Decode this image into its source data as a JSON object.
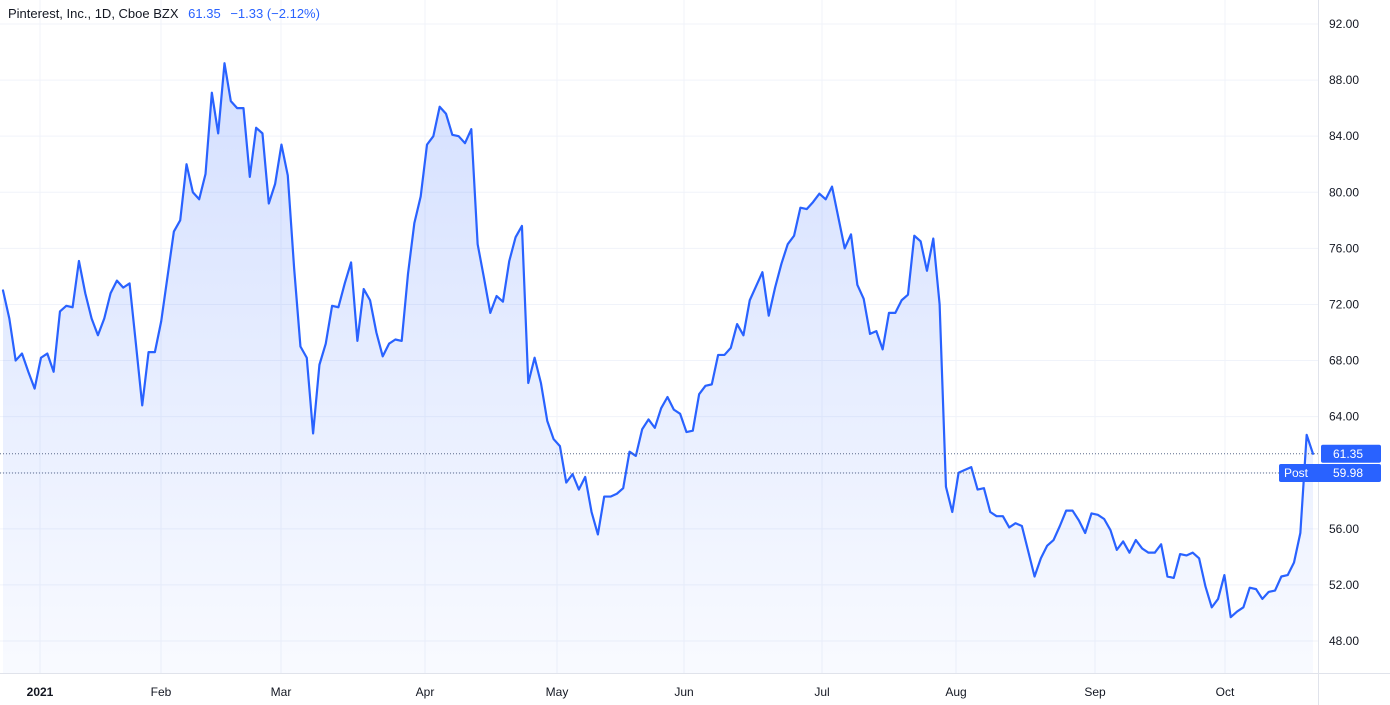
{
  "legend": {
    "name": "Pinterest, Inc., 1D, Cboe BZX",
    "price": "61.35",
    "change": "−1.33 (−2.12%)"
  },
  "price_label": "61.35",
  "post_label": {
    "tag": "Post",
    "value": "59.98"
  },
  "colors": {
    "line": "#2962ff",
    "grid": "#f0f3fa",
    "label_bg": "#2962ff"
  },
  "chart_data": {
    "type": "area",
    "symbol": "PINS",
    "ylim": [
      46,
      93
    ],
    "y_ticks": [
      "48.00",
      "52.00",
      "56.00",
      "60.00",
      "64.00",
      "68.00",
      "72.00",
      "76.00",
      "80.00",
      "84.00",
      "88.00",
      "92.00"
    ],
    "x_ticks": [
      "2021",
      "Feb",
      "Mar",
      "Apr",
      "May",
      "Jun",
      "Jul",
      "Aug",
      "Sep",
      "Oct"
    ],
    "last_price": 61.35,
    "post_market_price": 59.98,
    "close": [
      73.0,
      71.0,
      68.0,
      68.5,
      67.2,
      66.0,
      68.2,
      68.5,
      67.2,
      71.5,
      71.9,
      71.8,
      75.1,
      72.8,
      71.0,
      69.8,
      71.0,
      72.8,
      73.7,
      73.2,
      73.5,
      69.2,
      64.8,
      68.6,
      68.6,
      70.8,
      74.0,
      77.2,
      78.0,
      82.0,
      80.0,
      79.5,
      81.3,
      87.1,
      84.2,
      89.2,
      86.5,
      86.0,
      86.0,
      81.1,
      84.6,
      84.2,
      79.2,
      80.6,
      83.4,
      81.2,
      74.6,
      69.0,
      68.2,
      62.8,
      67.7,
      69.2,
      71.9,
      71.8,
      73.5,
      75.0,
      69.4,
      73.1,
      72.3,
      70.0,
      68.3,
      69.2,
      69.5,
      69.4,
      74.2,
      77.8,
      79.7,
      83.4,
      84.0,
      86.1,
      85.6,
      84.1,
      84.0,
      83.5,
      84.5,
      76.3,
      73.9,
      71.4,
      72.6,
      72.2,
      75.1,
      76.8,
      77.6,
      66.4,
      68.2,
      66.4,
      63.7,
      62.4,
      61.9,
      59.3,
      59.9,
      58.8,
      59.7,
      57.2,
      55.6,
      58.3,
      58.3,
      58.5,
      58.9,
      61.5,
      61.2,
      63.1,
      63.8,
      63.2,
      64.6,
      65.4,
      64.5,
      64.2,
      62.9,
      63.0,
      65.6,
      66.2,
      66.3,
      68.4,
      68.4,
      68.9,
      70.6,
      69.8,
      72.3,
      73.3,
      74.3,
      71.2,
      73.2,
      74.9,
      76.3,
      76.9,
      78.9,
      78.8,
      79.3,
      79.9,
      79.5,
      80.4,
      78.2,
      76.0,
      77.0,
      73.4,
      72.4,
      69.9,
      70.1,
      68.8,
      71.4,
      71.4,
      72.3,
      72.7,
      76.9,
      76.5,
      74.4,
      76.7,
      72.0,
      59.0,
      57.2,
      60.0,
      60.2,
      60.4,
      58.8,
      58.9,
      57.2,
      56.9,
      56.9,
      56.1,
      56.4,
      56.2,
      54.4,
      52.6,
      53.9,
      54.8,
      55.2,
      56.2,
      57.3,
      57.3,
      56.6,
      55.7,
      57.1,
      57.0,
      56.7,
      55.9,
      54.5,
      55.1,
      54.3,
      55.2,
      54.6,
      54.3,
      54.3,
      54.9,
      52.6,
      52.5,
      54.2,
      54.1,
      54.3,
      53.9,
      51.9,
      50.4,
      51.0,
      52.7,
      49.7,
      50.1,
      50.4,
      51.8,
      51.7,
      51.0,
      51.5,
      51.6,
      52.6,
      52.7,
      53.6,
      55.7,
      62.7,
      61.35
    ]
  }
}
